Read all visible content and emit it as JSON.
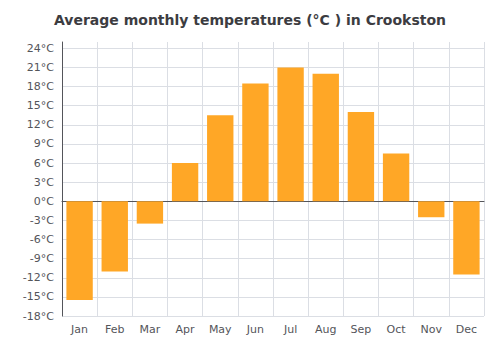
{
  "chart_data": {
    "type": "bar",
    "title": "Average monthly temperatures (°C ) in Crookston",
    "categories": [
      "Jan",
      "Feb",
      "Mar",
      "Apr",
      "May",
      "Jun",
      "Jul",
      "Aug",
      "Sep",
      "Oct",
      "Nov",
      "Dec"
    ],
    "values": [
      -15.5,
      -11.0,
      -3.5,
      6.0,
      13.5,
      18.5,
      21.0,
      20.0,
      14.0,
      7.5,
      -2.5,
      -11.5
    ],
    "color": "#FFA726",
    "ylim": [
      -18,
      25
    ],
    "yticks": [
      {
        "value": -18,
        "label": "-18°C"
      },
      {
        "value": -15,
        "label": "-15°C"
      },
      {
        "value": -12,
        "label": "-12°C"
      },
      {
        "value": -9,
        "label": "-9°C"
      },
      {
        "value": -6,
        "label": "-6°C"
      },
      {
        "value": -3,
        "label": "-3°C"
      },
      {
        "value": 0,
        "label": "0°C"
      },
      {
        "value": 3,
        "label": "3°C"
      },
      {
        "value": 6,
        "label": "6°C"
      },
      {
        "value": 9,
        "label": "9°C"
      },
      {
        "value": 12,
        "label": "12°C"
      },
      {
        "value": 15,
        "label": "15°C"
      },
      {
        "value": 18,
        "label": "18°C"
      },
      {
        "value": 21,
        "label": "21°C"
      },
      {
        "value": 24,
        "label": "24°C"
      }
    ],
    "grid": true
  }
}
